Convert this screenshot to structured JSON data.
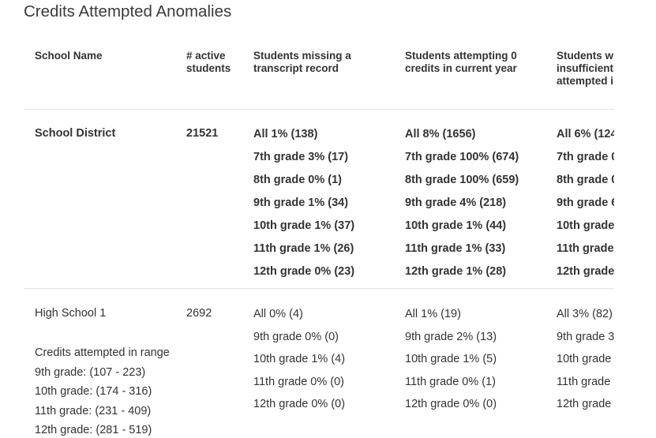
{
  "page": {
    "title": "Credits Attempted Anomalies"
  },
  "columns": [
    "School Name",
    "# active students",
    "Students missing a transcript record",
    "Students attempting 0 credits in current year",
    "Students with insufficient credits attempted in current year"
  ],
  "header_lines": {
    "name": [
      "School Name"
    ],
    "active": [
      "# active",
      "students"
    ],
    "missing": [
      "Students missing a",
      "transcript record"
    ],
    "zero": [
      "Students attempting 0",
      "credits in current year"
    ],
    "insufficient": [
      "Students w",
      "insufficient",
      "attempted i"
    ]
  },
  "rows": [
    {
      "name": "School District",
      "active": "21521",
      "missing": [
        "All 1% (138)",
        "7th grade 3% (17)",
        "8th grade 0% (1)",
        "9th grade 1% (34)",
        "10th grade 1% (37)",
        "11th grade 1% (26)",
        "12th grade 0% (23)"
      ],
      "zero": [
        "All 8% (1656)",
        "7th grade 100% (674)",
        "8th grade 100% (659)",
        "9th grade 4% (218)",
        "10th grade 1% (44)",
        "11th grade 1% (33)",
        "12th grade 1% (28)"
      ],
      "insufficient": [
        "All 6% (124",
        "7th grade 0",
        "8th grade 0",
        "9th grade 6",
        "10th grade",
        "11th grade",
        "12th grade"
      ]
    },
    {
      "name": "High School 1",
      "active": "2692",
      "range_label": "Credits attempted in range",
      "ranges": [
        "9th grade: (107 - 223)",
        "10th grade: (174 - 316)",
        "11th grade: (231 - 409)",
        "12th grade: (281 - 519)"
      ],
      "missing": [
        "All 0% (4)",
        "9th grade 0% (0)",
        "10th grade 1% (4)",
        "11th grade 0% (0)",
        "12th grade 0% (0)"
      ],
      "zero": [
        "All 1% (19)",
        "9th grade 2% (13)",
        "10th grade 1% (5)",
        "11th grade 0% (1)",
        "12th grade 0% (0)"
      ],
      "insufficient": [
        "All 3% (82)",
        "9th grade 3",
        "10th grade",
        "11th grade",
        "12th grade"
      ]
    }
  ]
}
